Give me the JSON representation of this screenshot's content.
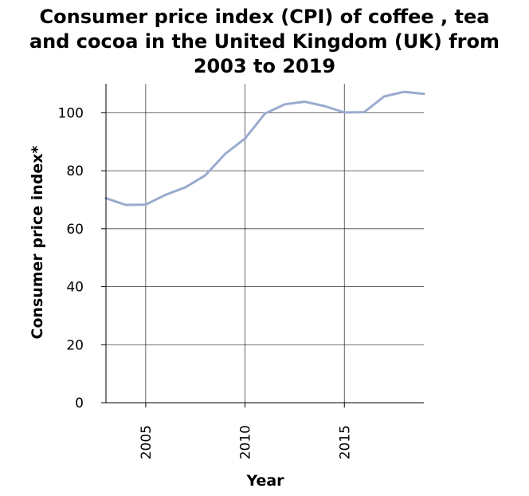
{
  "chart_data": {
    "type": "line",
    "title_lines": [
      "Consumer price index (CPI) of coffee , tea",
      "and cocoa in the United Kingdom (UK) from",
      "2003 to 2019"
    ],
    "xlabel": "Year",
    "ylabel": "Consumer price index*",
    "xlim": [
      2003,
      2019
    ],
    "ylim": [
      0,
      110
    ],
    "x_ticks": [
      2005,
      2010,
      2015
    ],
    "y_ticks": [
      0,
      20,
      40,
      60,
      80,
      100
    ],
    "grid": true,
    "series": [
      {
        "x": [
          2003,
          2004,
          2005,
          2006,
          2007,
          2008,
          2009,
          2010,
          2011,
          2012,
          2013,
          2014,
          2015,
          2016,
          2017,
          2018,
          2019
        ],
        "values": [
          70.5,
          68.2,
          68.3,
          71.7,
          74.3,
          78.4,
          85.8,
          91.1,
          99.7,
          102.9,
          103.8,
          102.3,
          100.1,
          100.2,
          105.6,
          107.2,
          106.5
        ]
      }
    ],
    "line_color": "#9aabcf",
    "axis_color": "#000000"
  }
}
